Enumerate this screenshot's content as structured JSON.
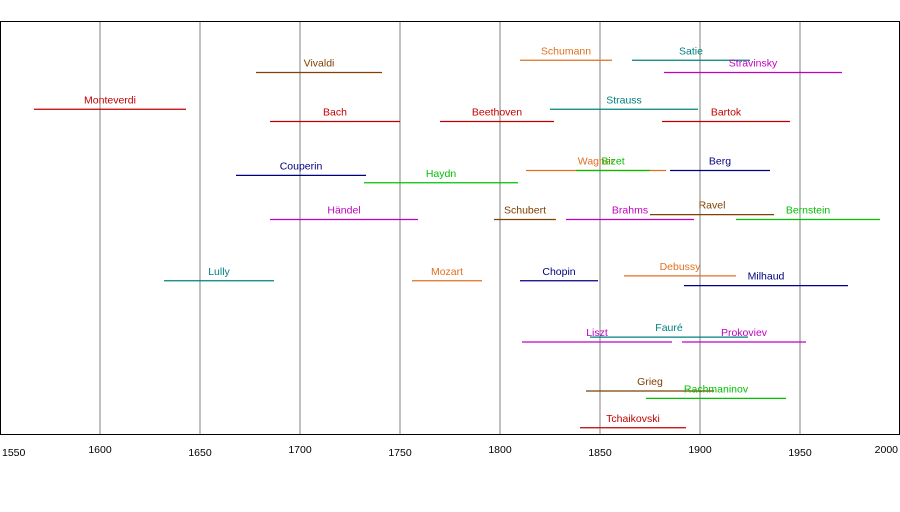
{
  "chart_data": {
    "type": "timeline",
    "title": "",
    "xlabel": "",
    "ylabel": "",
    "xlim": [
      1550,
      2000
    ],
    "x_ticks": [
      1550,
      1600,
      1650,
      1700,
      1750,
      1800,
      1850,
      1900,
      1950,
      2000
    ],
    "grid": true,
    "legend": "none",
    "composers": [
      {
        "name": "Monteverdi",
        "start": 1567,
        "end": 1643,
        "row": 2.5,
        "color": "#c00000"
      },
      {
        "name": "Vivaldi",
        "start": 1678,
        "end": 1741,
        "row": 1,
        "color": "#804000"
      },
      {
        "name": "Bach",
        "start": 1685,
        "end": 1750,
        "row": 3,
        "color": "#c00000"
      },
      {
        "name": "Couperin",
        "start": 1668,
        "end": 1733,
        "row": 5.2,
        "color": "#000080"
      },
      {
        "name": "Händel",
        "start": 1685,
        "end": 1759,
        "row": 7,
        "color": "#c000c0"
      },
      {
        "name": "Lully",
        "start": 1632,
        "end": 1687,
        "row": 9.5,
        "color": "#008080"
      },
      {
        "name": "Haydn",
        "start": 1732,
        "end": 1809,
        "row": 5.5,
        "color": "#00c000"
      },
      {
        "name": "Mozart",
        "start": 1756,
        "end": 1791,
        "row": 9.5,
        "color": "#e07020"
      },
      {
        "name": "Beethoven",
        "start": 1770,
        "end": 1827,
        "row": 3,
        "color": "#c00000"
      },
      {
        "name": "Schumann",
        "start": 1810,
        "end": 1856,
        "row": 0.5,
        "color": "#e07020"
      },
      {
        "name": "Strauss",
        "start": 1825,
        "end": 1899,
        "row": 2.5,
        "color": "#008080"
      },
      {
        "name": "Wagner",
        "start": 1813,
        "end": 1883,
        "row": 5,
        "color": "#e07020"
      },
      {
        "name": "Schubert",
        "start": 1797,
        "end": 1828,
        "row": 7,
        "color": "#804000"
      },
      {
        "name": "Chopin",
        "start": 1810,
        "end": 1849,
        "row": 9.5,
        "color": "#000080"
      },
      {
        "name": "Liszt",
        "start": 1811,
        "end": 1886,
        "row": 12,
        "color": "#c000c0"
      },
      {
        "name": "Tchaikovski",
        "start": 1840,
        "end": 1893,
        "row": 15.5,
        "color": "#c00000"
      },
      {
        "name": "Grieg",
        "start": 1843,
        "end": 1907,
        "row": 14,
        "color": "#804000"
      },
      {
        "name": "Fauré",
        "start": 1845,
        "end": 1924,
        "row": 11.8,
        "color": "#008080"
      },
      {
        "name": "Brahms",
        "start": 1833,
        "end": 1897,
        "row": 7,
        "color": "#c000c0"
      },
      {
        "name": "Bizet",
        "start": 1838,
        "end": 1875,
        "row": 5,
        "color": "#00c000"
      },
      {
        "name": "Satie",
        "start": 1866,
        "end": 1925,
        "row": 0.5,
        "color": "#008080"
      },
      {
        "name": "Debussy",
        "start": 1862,
        "end": 1918,
        "row": 9.3,
        "color": "#e07020"
      },
      {
        "name": "Bartok",
        "start": 1881,
        "end": 1945,
        "row": 3,
        "color": "#c00000"
      },
      {
        "name": "Berg",
        "start": 1885,
        "end": 1935,
        "row": 5,
        "color": "#000080"
      },
      {
        "name": "Ravel",
        "start": 1875,
        "end": 1937,
        "row": 6.8,
        "color": "#804000"
      },
      {
        "name": "Stravinsky",
        "start": 1882,
        "end": 1971,
        "row": 1,
        "color": "#c000c0"
      },
      {
        "name": "Prokoviev",
        "start": 1891,
        "end": 1953,
        "row": 12,
        "color": "#c000c0"
      },
      {
        "name": "Rachmaninov",
        "start": 1873,
        "end": 1943,
        "row": 14.3,
        "color": "#00c000"
      },
      {
        "name": "Milhaud",
        "start": 1892,
        "end": 1974,
        "row": 9.7,
        "color": "#000080"
      },
      {
        "name": "Bernstein",
        "start": 1918,
        "end": 1990,
        "row": 7,
        "color": "#00c000"
      }
    ]
  }
}
